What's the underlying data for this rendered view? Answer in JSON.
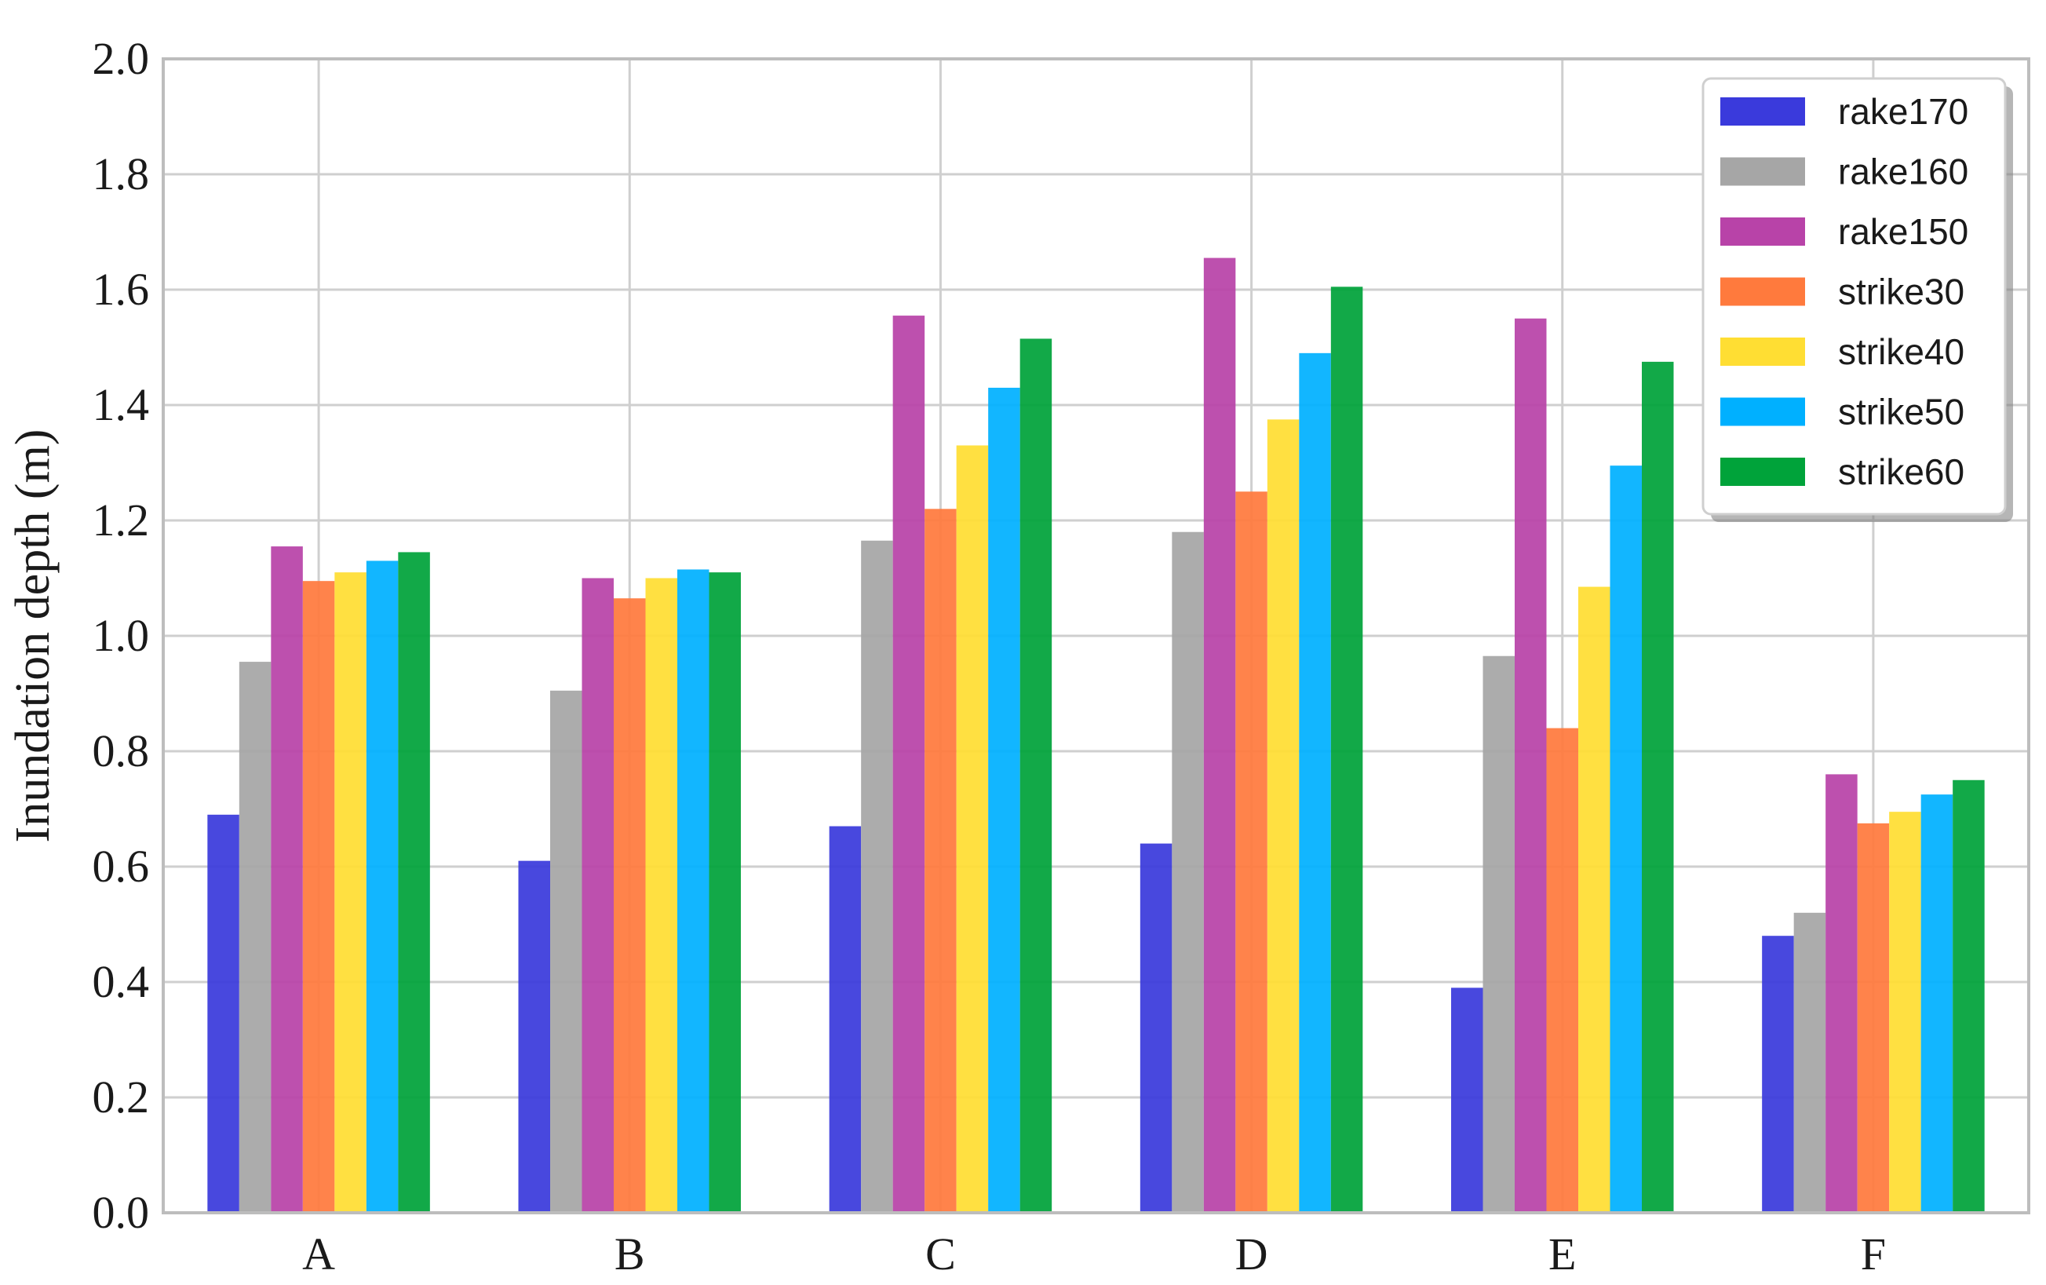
{
  "chart_data": {
    "type": "bar",
    "title": "",
    "xlabel": "",
    "ylabel": "Inundation depth (m)",
    "ylim": [
      0,
      2.0
    ],
    "yticks": [
      "0.0",
      "0.2",
      "0.4",
      "0.6",
      "0.8",
      "1.0",
      "1.2",
      "1.4",
      "1.6",
      "1.8",
      "2.0"
    ],
    "categories": [
      "A",
      "B",
      "C",
      "D",
      "E",
      "F"
    ],
    "grid": true,
    "legend_position": "top-right",
    "series": [
      {
        "name": "rake170",
        "color": "#3a3adc",
        "values": [
          0.69,
          0.61,
          0.67,
          0.64,
          0.39,
          0.48
        ]
      },
      {
        "name": "rake160",
        "color": "#a6a6a6",
        "values": [
          0.955,
          0.905,
          1.165,
          1.18,
          0.965,
          0.52
        ]
      },
      {
        "name": "rake150",
        "color": "#b843a8",
        "values": [
          1.155,
          1.1,
          1.555,
          1.655,
          1.55,
          0.76
        ]
      },
      {
        "name": "strike30",
        "color": "#ff7a3d",
        "values": [
          1.095,
          1.065,
          1.22,
          1.25,
          0.84,
          0.675
        ]
      },
      {
        "name": "strike40",
        "color": "#ffde33",
        "values": [
          1.11,
          1.1,
          1.33,
          1.375,
          1.085,
          0.695
        ]
      },
      {
        "name": "strike50",
        "color": "#00b0ff",
        "values": [
          1.13,
          1.115,
          1.43,
          1.49,
          1.295,
          0.725
        ]
      },
      {
        "name": "strike60",
        "color": "#00a33a",
        "values": [
          1.145,
          1.11,
          1.515,
          1.605,
          1.475,
          0.75
        ]
      }
    ]
  }
}
